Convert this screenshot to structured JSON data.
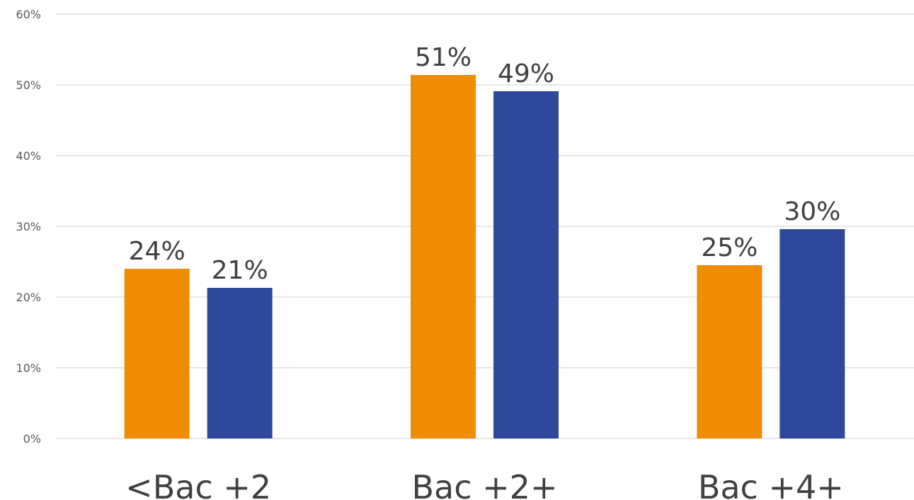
{
  "chart_data": {
    "type": "bar",
    "title": "",
    "xlabel": "",
    "ylabel": "",
    "categories": [
      "<Bac +2",
      "Bac +2+",
      "Bac +4+"
    ],
    "series": [
      {
        "values": [
          0.24,
          0.514,
          0.245
        ],
        "data_labels": [
          "24%",
          "51%",
          "25%"
        ],
        "color": "#f08c00"
      },
      {
        "values": [
          0.213,
          0.491,
          0.296
        ],
        "data_labels": [
          "21%",
          "49%",
          "30%"
        ],
        "color": "#2e489c"
      }
    ],
    "ylim": [
      0,
      0.6
    ],
    "yticks": [
      0,
      0.1,
      0.2,
      0.3,
      0.4,
      0.5,
      0.6
    ],
    "ytick_labels": [
      "0%",
      "10%",
      "20%",
      "30%",
      "40%",
      "50%",
      "60%"
    ],
    "grid": true,
    "legend": "none"
  }
}
